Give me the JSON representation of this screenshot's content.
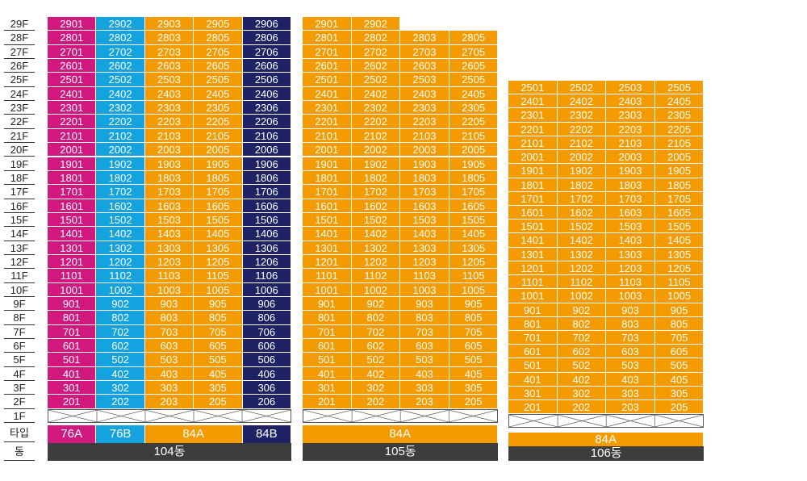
{
  "colors": {
    "76A": "#d1187f",
    "76B": "#15a3e0",
    "84A": "#f39b00",
    "84B": "#1f2264",
    "dong_bar": "#3d3d3d"
  },
  "axis": {
    "floors": [
      "29F",
      "28F",
      "27F",
      "26F",
      "25F",
      "24F",
      "23F",
      "22F",
      "21F",
      "20F",
      "19F",
      "18F",
      "17F",
      "16F",
      "15F",
      "14F",
      "13F",
      "12F",
      "11F",
      "10F",
      "9F",
      "8F",
      "7F",
      "6F",
      "5F",
      "4F",
      "3F",
      "2F",
      "1F"
    ],
    "type_label": "타입",
    "dong_label": "동"
  },
  "buildings": [
    {
      "name": "104동",
      "top_floor": 29,
      "columns": [
        {
          "suffix": "01",
          "type": "76A"
        },
        {
          "suffix": "02",
          "type": "76B"
        },
        {
          "suffix": "03",
          "type": "84A"
        },
        {
          "suffix": "05",
          "type": "84A"
        },
        {
          "suffix": "06",
          "type": "84B"
        }
      ],
      "type_labels": [
        {
          "label": "76A",
          "type": "76A",
          "span": 1
        },
        {
          "label": "76B",
          "type": "76B",
          "span": 1
        },
        {
          "label": "84A",
          "type": "84A",
          "span": 2
        },
        {
          "label": "84B",
          "type": "84B",
          "span": 1
        }
      ]
    },
    {
      "name": "105동",
      "top_floor": 29,
      "missing_units": [
        "2903",
        "2905"
      ],
      "columns": [
        {
          "suffix": "01",
          "type": "84A"
        },
        {
          "suffix": "02",
          "type": "84A"
        },
        {
          "suffix": "03",
          "type": "84A"
        },
        {
          "suffix": "05",
          "type": "84A"
        }
      ],
      "type_labels": [
        {
          "label": "84A",
          "type": "84A",
          "span": 4
        }
      ]
    },
    {
      "name": "106동",
      "top_floor": 25,
      "columns": [
        {
          "suffix": "01",
          "type": "84A"
        },
        {
          "suffix": "02",
          "type": "84A"
        },
        {
          "suffix": "03",
          "type": "84A"
        },
        {
          "suffix": "05",
          "type": "84A"
        }
      ],
      "type_labels": [
        {
          "label": "84A",
          "type": "84A",
          "span": 4
        }
      ]
    }
  ]
}
